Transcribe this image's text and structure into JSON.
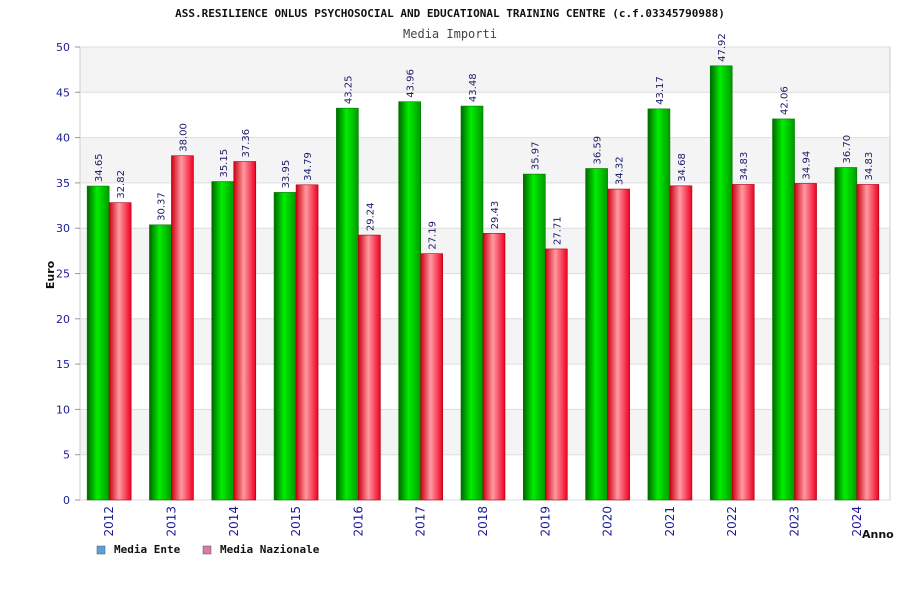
{
  "chart_data": {
    "type": "bar",
    "title": "ASS.RESILIENCE ONLUS PSYCHOSOCIAL AND EDUCATIONAL TRAINING CENTRE (c.f.03345790988)",
    "subtitle": "Media Importi",
    "xlabel": "Anno",
    "ylabel": "Euro",
    "ylim": [
      0,
      50
    ],
    "yticks": [
      0,
      5,
      10,
      15,
      20,
      25,
      30,
      35,
      40,
      45,
      50
    ],
    "categories": [
      "2012",
      "2013",
      "2014",
      "2015",
      "2016",
      "2017",
      "2018",
      "2019",
      "2020",
      "2021",
      "2022",
      "2023",
      "2024"
    ],
    "series": [
      {
        "name": "Media Ente",
        "color": "#00cc00",
        "legend_color": "#5aa0e0",
        "values": [
          34.65,
          30.37,
          35.15,
          33.95,
          43.25,
          43.96,
          43.48,
          35.97,
          36.59,
          43.17,
          47.92,
          42.06,
          36.7
        ]
      },
      {
        "name": "Media Nazionale",
        "color": "#ee1122",
        "legend_color": "#d97aa8",
        "values": [
          32.82,
          38.0,
          37.36,
          34.79,
          29.24,
          27.19,
          29.43,
          27.71,
          34.32,
          34.68,
          34.83,
          34.94,
          34.83
        ]
      }
    ],
    "grid": true,
    "legend_position": "bottom-left"
  }
}
